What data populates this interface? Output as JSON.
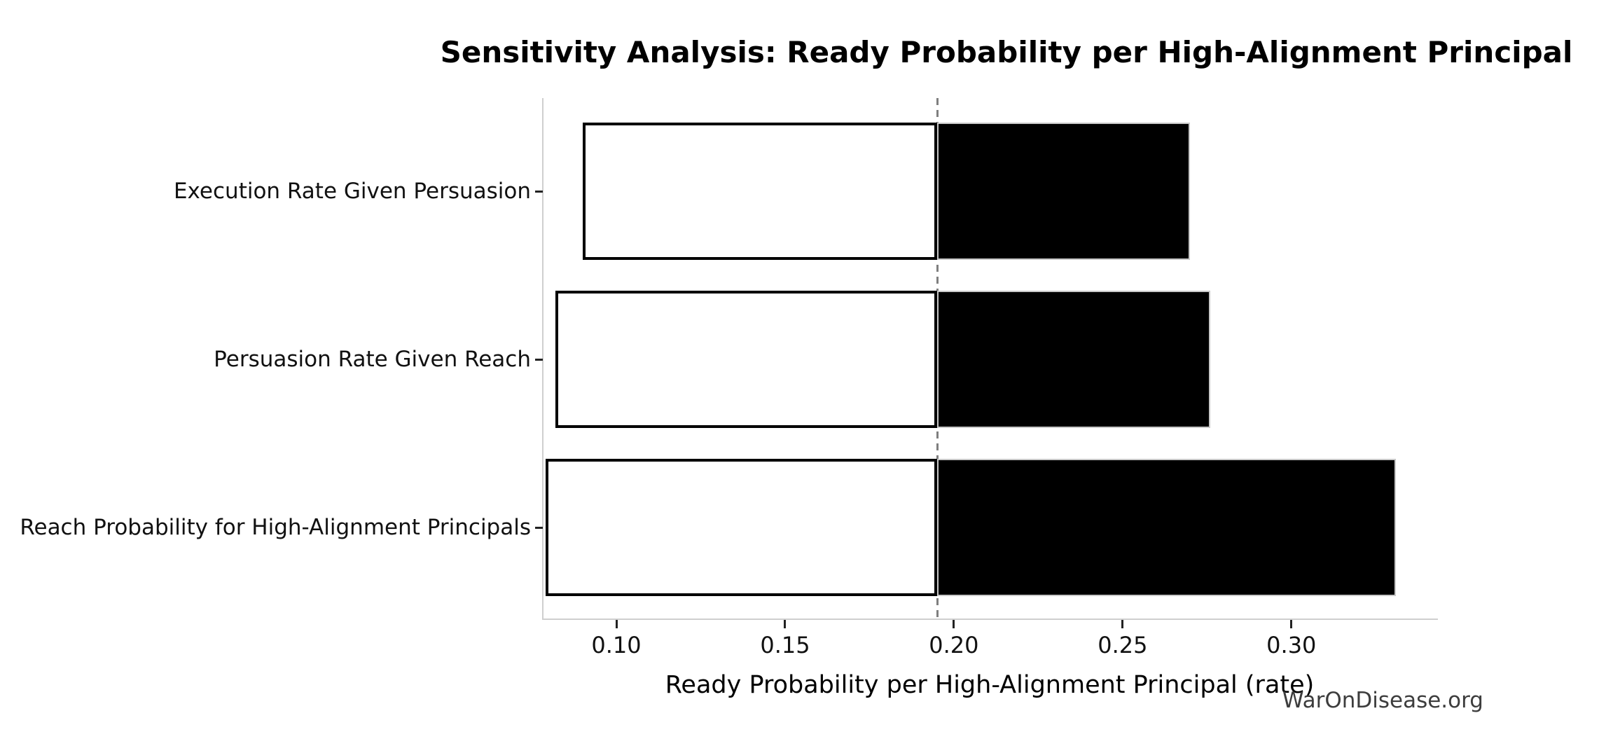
{
  "title": "Sensitivity Analysis: Ready Probability per High-Alignment Principal",
  "watermark": "WarOnDisease.org",
  "chart_data": {
    "type": "bar",
    "subtype": "tornado-sensitivity",
    "orientation": "horizontal",
    "title": "Sensitivity Analysis: Ready Probability per High-Alignment Principal",
    "xlabel": "Ready Probability per High-Alignment Principal (rate)",
    "ylabel": "",
    "xlim": [
      0.078,
      0.343
    ],
    "x_ticks": [
      0.1,
      0.15,
      0.2,
      0.25,
      0.3
    ],
    "x_tick_decimals": 2,
    "baseline": 0.195,
    "grid": false,
    "legend": false,
    "categories": [
      "Execution Rate Given Persuasion",
      "Persuasion Rate Given Reach",
      "Reach Probability for High-Alignment Principals"
    ],
    "bars": [
      {
        "category": "Execution Rate Given Persuasion",
        "low": 0.09,
        "high": 0.27
      },
      {
        "category": "Persuasion Rate Given Reach",
        "low": 0.082,
        "high": 0.276
      },
      {
        "category": "Reach Probability for High-Alignment Principals",
        "low": 0.079,
        "high": 0.331
      }
    ],
    "colors": {
      "low_segment_fill": "#ffffff",
      "low_segment_edge": "#000000",
      "high_segment_fill": "#000000",
      "high_segment_edge": "#c8c8c8",
      "baseline_line": "#7f7f7f",
      "spine": "#cfcfcf",
      "tick": "#222222",
      "text": "#000000",
      "watermark": "#3d3d3d"
    }
  }
}
